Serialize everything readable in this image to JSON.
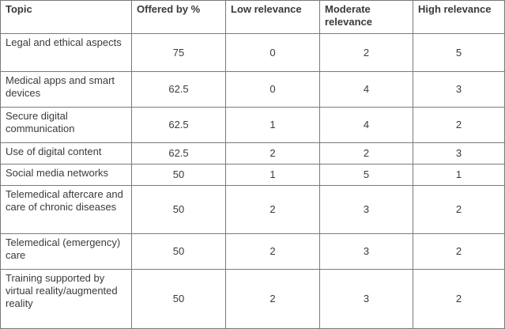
{
  "table": {
    "headers": [
      "Topic",
      "Offered by %",
      "Low relevance",
      "Moderate relevance",
      "High relevance"
    ],
    "rows": [
      [
        "Legal and ethical aspects",
        "75",
        "0",
        "2",
        "5"
      ],
      [
        "Medical apps and smart devices",
        "62.5",
        "0",
        "4",
        "3"
      ],
      [
        "Secure digital communication",
        "62.5",
        "1",
        "4",
        "2"
      ],
      [
        "Use of digital content",
        "62.5",
        "2",
        "2",
        "3"
      ],
      [
        "Social media networks",
        "50",
        "1",
        "5",
        "1"
      ],
      [
        "Telemedical aftercare and care of chronic diseases",
        "50",
        "2",
        "3",
        "2"
      ],
      [
        "Telemedical (emergency) care",
        "50",
        "2",
        "3",
        "2"
      ],
      [
        "Training supported by virtual reality/augmented reality",
        "50",
        "2",
        "3",
        "2"
      ]
    ]
  }
}
